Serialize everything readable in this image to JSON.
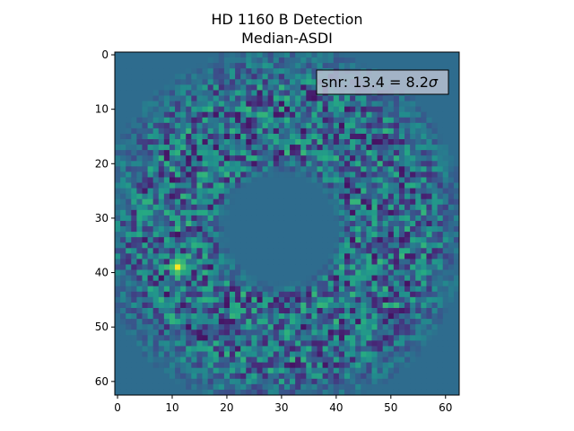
{
  "chart_data": {
    "type": "heatmap",
    "title_lines": [
      "HD 1160 B Detection",
      "Median-ASDI"
    ],
    "xlabel": "",
    "ylabel": "",
    "grid_size": [
      63,
      63
    ],
    "xlim": [
      -0.5,
      62.5
    ],
    "ylim": [
      62.5,
      -0.5
    ],
    "x_ticks": [
      0,
      10,
      20,
      30,
      40,
      50,
      60
    ],
    "y_ticks": [
      0,
      10,
      20,
      30,
      40,
      50,
      60
    ],
    "x_tick_labels": [
      "0",
      "10",
      "20",
      "30",
      "40",
      "50",
      "60"
    ],
    "y_tick_labels": [
      "0",
      "10",
      "20",
      "30",
      "40",
      "50",
      "60"
    ],
    "colormap": "viridis",
    "annotation": {
      "text_prefix": "snr: 13.4 = 8.2",
      "text_symbol": "σ",
      "placement": "top-right"
    },
    "masked_center": [
      30,
      32
    ],
    "masked_radius": 10,
    "detection_pixel": [
      11,
      39
    ],
    "background_level": 0.36,
    "grid": false
  }
}
